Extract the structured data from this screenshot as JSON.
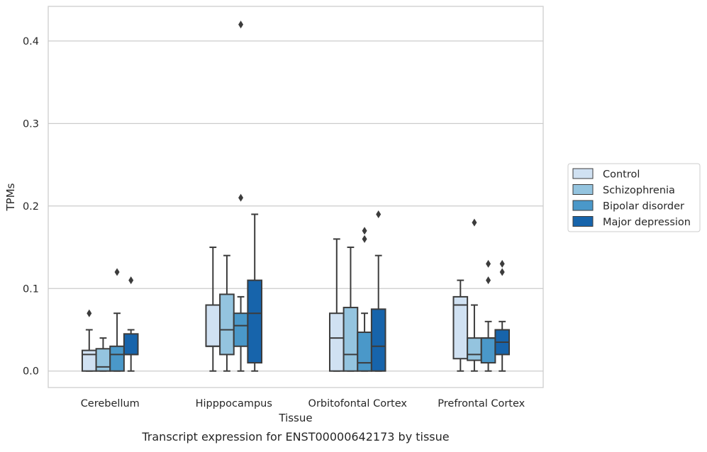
{
  "chart_data": {
    "type": "box",
    "xlabel": "Tissue",
    "ylabel": "TPMs",
    "caption": "Transcript expression for ENST00000642173 by tissue",
    "ylim": [
      -0.02,
      0.442
    ],
    "yticks": [
      0.0,
      0.1,
      0.2,
      0.3,
      0.4
    ],
    "ytick_labels": [
      "0.0",
      "0.1",
      "0.2",
      "0.3",
      "0.4"
    ],
    "grid": "horizontal",
    "legend_position": "right",
    "categories": [
      "Cerebellum",
      "Hipppocampus",
      "Orbitofontal Cortex",
      "Prefrontal Cortex"
    ],
    "series": [
      {
        "name": "Control",
        "color": "#d0e1f2",
        "boxes": [
          {
            "min": 0.0,
            "q1": 0.0,
            "median": 0.02,
            "q3": 0.025,
            "max": 0.05,
            "outliers": [
              0.07
            ]
          },
          {
            "min": 0.0,
            "q1": 0.03,
            "median": 0.03,
            "q3": 0.08,
            "max": 0.15,
            "outliers": []
          },
          {
            "min": 0.0,
            "q1": 0.0,
            "median": 0.04,
            "q3": 0.07,
            "max": 0.16,
            "outliers": []
          },
          {
            "min": 0.0,
            "q1": 0.015,
            "median": 0.08,
            "q3": 0.09,
            "max": 0.11,
            "outliers": []
          }
        ]
      },
      {
        "name": "Schizophrenia",
        "color": "#94c4df",
        "boxes": [
          {
            "min": 0.0,
            "q1": 0.0,
            "median": 0.005,
            "q3": 0.027,
            "max": 0.04,
            "outliers": []
          },
          {
            "min": 0.0,
            "q1": 0.02,
            "median": 0.05,
            "q3": 0.093,
            "max": 0.14,
            "outliers": []
          },
          {
            "min": 0.0,
            "q1": 0.0,
            "median": 0.02,
            "q3": 0.077,
            "max": 0.15,
            "outliers": []
          },
          {
            "min": 0.0,
            "q1": 0.013,
            "median": 0.02,
            "q3": 0.04,
            "max": 0.08,
            "outliers": [
              0.18
            ]
          }
        ]
      },
      {
        "name": "Bipolar disorder",
        "color": "#4a98c9",
        "boxes": [
          {
            "min": 0.0,
            "q1": 0.0,
            "median": 0.02,
            "q3": 0.03,
            "max": 0.07,
            "outliers": [
              0.12
            ]
          },
          {
            "min": 0.0,
            "q1": 0.03,
            "median": 0.055,
            "q3": 0.07,
            "max": 0.09,
            "outliers": [
              0.21,
              0.42
            ]
          },
          {
            "min": 0.0,
            "q1": 0.0,
            "median": 0.01,
            "q3": 0.047,
            "max": 0.07,
            "outliers": [
              0.16,
              0.17
            ]
          },
          {
            "min": 0.0,
            "q1": 0.01,
            "median": 0.04,
            "q3": 0.04,
            "max": 0.06,
            "outliers": [
              0.11,
              0.13
            ]
          }
        ]
      },
      {
        "name": "Major depression",
        "color": "#1764ab",
        "boxes": [
          {
            "min": 0.0,
            "q1": 0.02,
            "median": 0.02,
            "q3": 0.045,
            "max": 0.05,
            "outliers": [
              0.11
            ]
          },
          {
            "min": 0.0,
            "q1": 0.01,
            "median": 0.07,
            "q3": 0.11,
            "max": 0.19,
            "outliers": []
          },
          {
            "min": 0.0,
            "q1": 0.0,
            "median": 0.03,
            "q3": 0.075,
            "max": 0.14,
            "outliers": [
              0.19
            ]
          },
          {
            "min": 0.0,
            "q1": 0.02,
            "median": 0.035,
            "q3": 0.05,
            "max": 0.06,
            "outliers": [
              0.12,
              0.13
            ]
          }
        ]
      }
    ]
  }
}
